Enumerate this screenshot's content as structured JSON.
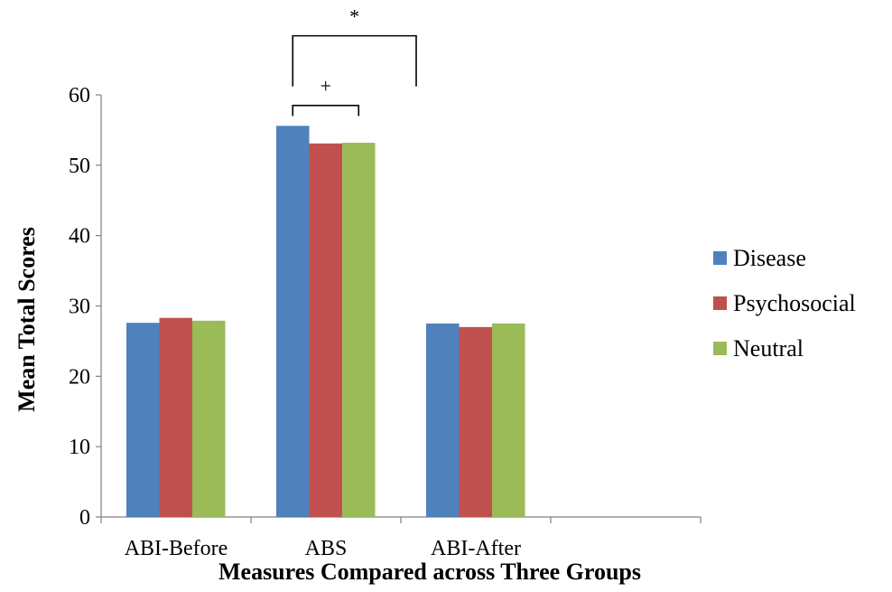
{
  "chart_data": {
    "type": "bar",
    "categories": [
      "ABI-Before",
      "ABS",
      "ABI-After",
      ""
    ],
    "series": [
      {
        "name": "Disease",
        "values": [
          27.6,
          55.6,
          27.5,
          null
        ],
        "color": "#4F81BD"
      },
      {
        "name": "Psychosocial",
        "values": [
          28.3,
          53.1,
          27.0,
          null
        ],
        "color": "#C0504D"
      },
      {
        "name": "Neutral",
        "values": [
          27.9,
          53.2,
          27.5,
          null
        ],
        "color": "#9BBB59"
      }
    ],
    "ylim": [
      0,
      60
    ],
    "yticks": [
      0,
      10,
      20,
      30,
      40,
      50,
      60
    ],
    "ylabel": "Mean Total Scores",
    "xlabel": "Measures Compared across Three Groups",
    "legend_position": "right",
    "grid": false,
    "annotations": [
      {
        "label": "+",
        "category": "ABS",
        "from_series": "Disease",
        "to_series": "Neutral",
        "level": 58.5,
        "tick_to": 57.0
      },
      {
        "label": "*",
        "category": "ABS",
        "from_series": "Disease",
        "to_series": "ABI-After",
        "level": 68.4,
        "tick_to": 61.2
      }
    ]
  }
}
